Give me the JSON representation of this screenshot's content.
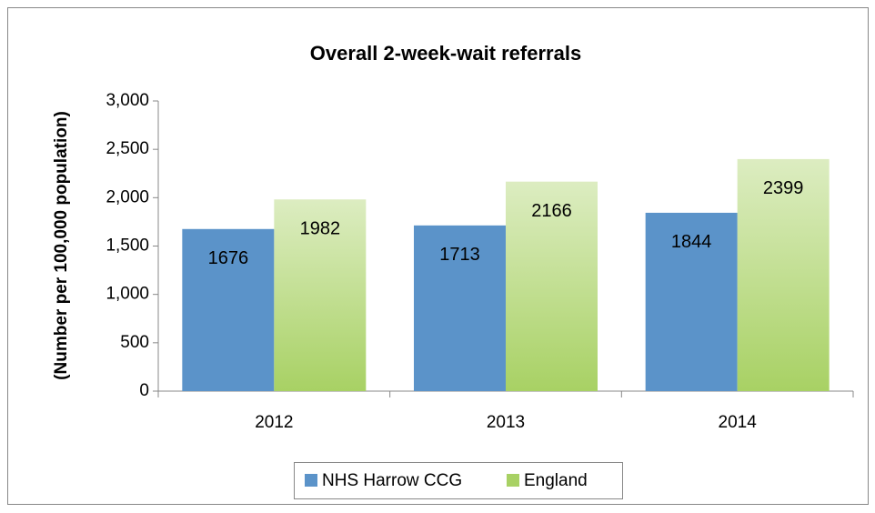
{
  "chart_data": {
    "type": "bar",
    "title": "Overall 2-week-wait referrals",
    "y_label": "(Number per 100,000 population)",
    "categories": [
      "2012",
      "2013",
      "2014"
    ],
    "series": [
      {
        "name": "NHS Harrow CCG",
        "color": "#5b93c9",
        "values": [
          1676,
          1713,
          1844
        ]
      },
      {
        "name": "England",
        "color": "#a8d164",
        "values": [
          1982,
          2166,
          2399
        ]
      }
    ],
    "ylim": [
      0,
      3000
    ],
    "yticks": [
      0,
      {
        "value": 500,
        "label": "500"
      },
      {
        "value": 1000,
        "label": "1,000"
      },
      {
        "value": 1500,
        "label": "1,500"
      },
      {
        "value": 2000,
        "label": "2,000"
      },
      {
        "value": 2500,
        "label": "2,500"
      },
      {
        "value": 3000,
        "label": "3,000"
      }
    ],
    "grid": false,
    "legend": "bottom"
  }
}
